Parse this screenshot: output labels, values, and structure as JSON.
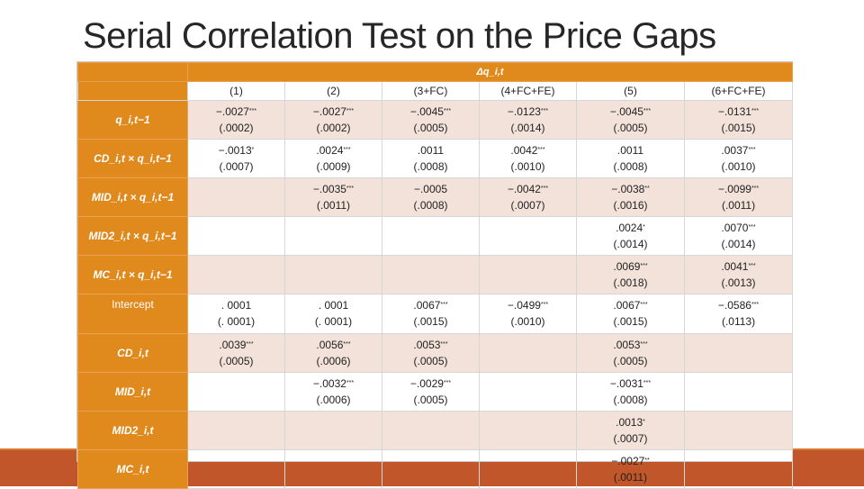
{
  "title": "Serial Correlation Test on the Price Gaps",
  "dependent_label": "Δq_i,t",
  "columns": [
    "(1)",
    "(2)",
    "(3+FC)",
    "(4+FC+FE)",
    "(5)",
    "(6+FC+FE)"
  ],
  "rows": [
    {
      "label": "q_i,t−1",
      "cells": [
        {
          "coef": "−.0027",
          "stars": "***",
          "se": "(.0002)"
        },
        {
          "coef": "−.0027",
          "stars": "***",
          "se": "(.0002)"
        },
        {
          "coef": "−.0045",
          "stars": "***",
          "se": "(.0005)"
        },
        {
          "coef": "−.0123",
          "stars": "***",
          "se": "(.0014)"
        },
        {
          "coef": "−.0045",
          "stars": "***",
          "se": "(.0005)"
        },
        {
          "coef": "−.0131",
          "stars": "***",
          "se": "(.0015)"
        }
      ]
    },
    {
      "label": "CD_i,t × q_i,t−1",
      "cells": [
        {
          "coef": "−.0013",
          "stars": "*",
          "se": "(.0007)"
        },
        {
          "coef": ".0024",
          "stars": "***",
          "se": "(.0009)"
        },
        {
          "coef": ".0011",
          "stars": "",
          "se": "(.0008)"
        },
        {
          "coef": ".0042",
          "stars": "***",
          "se": "(.0010)"
        },
        {
          "coef": ".0011",
          "stars": "",
          "se": "(.0008)"
        },
        {
          "coef": ".0037",
          "stars": "***",
          "se": "(.0010)"
        }
      ]
    },
    {
      "label": "MID_i,t × q_i,t−1",
      "cells": [
        {
          "coef": "",
          "stars": "",
          "se": ""
        },
        {
          "coef": "−.0035",
          "stars": "***",
          "se": "(.0011)"
        },
        {
          "coef": "−.0005",
          "stars": "",
          "se": "(.0008)"
        },
        {
          "coef": "−.0042",
          "stars": "***",
          "se": "(.0007)"
        },
        {
          "coef": "−.0038",
          "stars": "**",
          "se": "(.0016)"
        },
        {
          "coef": "−.0099",
          "stars": "***",
          "se": "(.0011)"
        }
      ]
    },
    {
      "label": "MID2_i,t × q_i,t−1",
      "cells": [
        {
          "coef": "",
          "stars": "",
          "se": ""
        },
        {
          "coef": "",
          "stars": "",
          "se": ""
        },
        {
          "coef": "",
          "stars": "",
          "se": ""
        },
        {
          "coef": "",
          "stars": "",
          "se": ""
        },
        {
          "coef": ".0024",
          "stars": "*",
          "se": "(.0014)"
        },
        {
          "coef": ".0070",
          "stars": "***",
          "se": "(.0014)"
        }
      ]
    },
    {
      "label": "MC_i,t × q_i,t−1",
      "cells": [
        {
          "coef": "",
          "stars": "",
          "se": ""
        },
        {
          "coef": "",
          "stars": "",
          "se": ""
        },
        {
          "coef": "",
          "stars": "",
          "se": ""
        },
        {
          "coef": "",
          "stars": "",
          "se": ""
        },
        {
          "coef": ".0069",
          "stars": "***",
          "se": "(.0018)"
        },
        {
          "coef": ".0041",
          "stars": "***",
          "se": "(.0013)"
        }
      ]
    },
    {
      "label": "Intercept",
      "plain": true,
      "cells": [
        {
          "coef": ". 0001",
          "stars": "",
          "se": "(. 0001)"
        },
        {
          "coef": ". 0001",
          "stars": "",
          "se": "(. 0001)"
        },
        {
          "coef": ".0067",
          "stars": "***",
          "se": "(.0015)"
        },
        {
          "coef": "−.0499",
          "stars": "***",
          "se": "(.0010)"
        },
        {
          "coef": ".0067",
          "stars": "***",
          "se": "(.0015)"
        },
        {
          "coef": "−.0586",
          "stars": "***",
          "se": "(.0113)"
        }
      ]
    },
    {
      "label": "CD_i,t",
      "cells": [
        {
          "coef": ".0039",
          "stars": "***",
          "se": "(.0005)"
        },
        {
          "coef": ".0056",
          "stars": "***",
          "se": "(.0006)"
        },
        {
          "coef": ".0053",
          "stars": "***",
          "se": "(.0005)"
        },
        {
          "coef": "",
          "stars": "",
          "se": ""
        },
        {
          "coef": ".0053",
          "stars": "***",
          "se": "(.0005)"
        },
        {
          "coef": "",
          "stars": "",
          "se": ""
        }
      ]
    },
    {
      "label": "MID_i,t",
      "cells": [
        {
          "coef": "",
          "stars": "",
          "se": ""
        },
        {
          "coef": "−.0032",
          "stars": "***",
          "se": "(.0006)"
        },
        {
          "coef": "−.0029",
          "stars": "***",
          "se": "(.0005)"
        },
        {
          "coef": "",
          "stars": "",
          "se": ""
        },
        {
          "coef": "−.0031",
          "stars": "***",
          "se": "(.0008)"
        },
        {
          "coef": "",
          "stars": "",
          "se": ""
        }
      ]
    },
    {
      "label": "MID2_i,t",
      "cells": [
        {
          "coef": "",
          "stars": "",
          "se": ""
        },
        {
          "coef": "",
          "stars": "",
          "se": ""
        },
        {
          "coef": "",
          "stars": "",
          "se": ""
        },
        {
          "coef": "",
          "stars": "",
          "se": ""
        },
        {
          "coef": ".0013",
          "stars": "*",
          "se": "(.0007)"
        },
        {
          "coef": "",
          "stars": "",
          "se": ""
        }
      ]
    },
    {
      "label": "MC_i,t",
      "cells": [
        {
          "coef": "",
          "stars": "",
          "se": ""
        },
        {
          "coef": "",
          "stars": "",
          "se": ""
        },
        {
          "coef": "",
          "stars": "",
          "se": ""
        },
        {
          "coef": "",
          "stars": "",
          "se": ""
        },
        {
          "coef": "−.0027",
          "stars": "**",
          "se": "(.0011)"
        },
        {
          "coef": "",
          "stars": "",
          "se": ""
        }
      ]
    }
  ],
  "colors": {
    "header_orange": "#e08a1e",
    "alt_row": "#f3e2d9",
    "bottom_band": "#c0562a"
  }
}
